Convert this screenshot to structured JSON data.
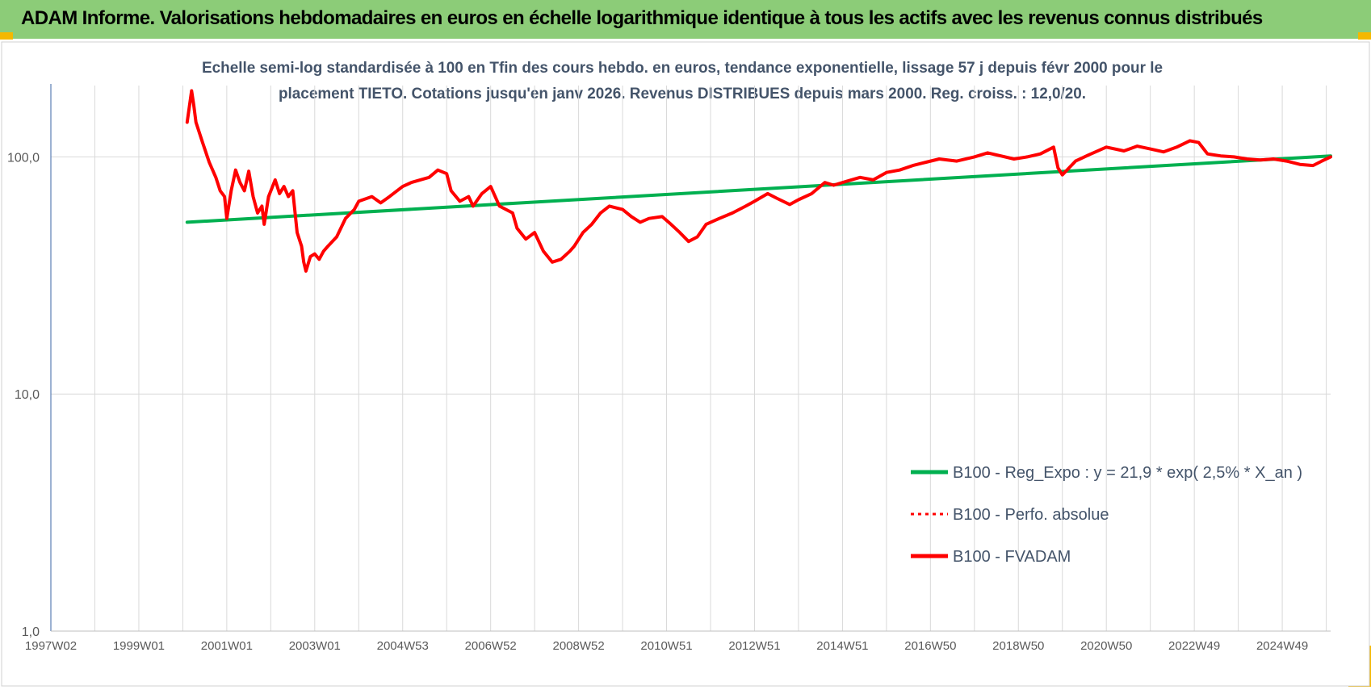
{
  "banner": {
    "title": "ADAM Informe. Valorisations hebdomadaires en euros en échelle logarithmique identique à tous les actifs avec les revenus connus distribués"
  },
  "colors": {
    "banner_bg": "#8ccc78",
    "trend_line": "#00b050",
    "price_line": "#ff0000",
    "grid": "#d9d9d9",
    "axis_text": "#595959",
    "title_text": "#44546a",
    "frame_accent": "#f5b800"
  },
  "chart_data": {
    "type": "line",
    "title_lines": [
      "Echelle semi-log standardisée à 100 en Tfin des cours hebdo. en euros, tendance exponentielle, lissage 57 j depuis févr 2000 pour le",
      "placement TIETO. Cotations jusqu'en janv 2026. Revenus DISTRIBUES depuis mars 2000. Reg. croiss. : 12,0/20."
    ],
    "y_scale": "log",
    "ylim": [
      1,
      200
    ],
    "y_ticks": [
      {
        "value": 1,
        "label": "1,0"
      },
      {
        "value": 10,
        "label": "10,0"
      },
      {
        "value": 100,
        "label": "100,0"
      }
    ],
    "xlim": [
      1997.0,
      2026.1
    ],
    "x_ticks": [
      {
        "value": 1997.0,
        "label": "1997W02"
      },
      {
        "value": 1999.0,
        "label": "1999W01"
      },
      {
        "value": 2001.0,
        "label": "2001W01"
      },
      {
        "value": 2003.0,
        "label": "2003W01"
      },
      {
        "value": 2005.0,
        "label": "2004W53"
      },
      {
        "value": 2007.0,
        "label": "2006W52"
      },
      {
        "value": 2009.0,
        "label": "2008W52"
      },
      {
        "value": 2011.0,
        "label": "2010W51"
      },
      {
        "value": 2013.0,
        "label": "2012W51"
      },
      {
        "value": 2015.0,
        "label": "2014W51"
      },
      {
        "value": 2017.0,
        "label": "2016W50"
      },
      {
        "value": 2019.0,
        "label": "2018W50"
      },
      {
        "value": 2021.0,
        "label": "2020W50"
      },
      {
        "value": 2023.0,
        "label": "2022W49"
      },
      {
        "value": 2025.0,
        "label": "2024W49"
      }
    ],
    "grid": true,
    "legend_position": "bottom-right",
    "series": [
      {
        "name": "B100 - Reg_Expo : y = 21,9 * exp( 2,5% *  X_an )",
        "style": "solid-thick",
        "color": "#00b050",
        "x": [
          2000.1,
          2026.1
        ],
        "y": [
          53,
          101
        ]
      },
      {
        "name": "B100 - Perfo. absolue",
        "style": "dotted",
        "color": "#ff0000",
        "x": [],
        "y": []
      },
      {
        "name": "B100 - FVADAM",
        "style": "solid-thick",
        "color": "#ff0000",
        "x": [
          2000.1,
          2000.2,
          2000.25,
          2000.3,
          2000.45,
          2000.6,
          2000.75,
          2000.85,
          2000.95,
          2001.0,
          2001.1,
          2001.2,
          2001.3,
          2001.4,
          2001.5,
          2001.6,
          2001.7,
          2001.8,
          2001.85,
          2001.95,
          2002.1,
          2002.2,
          2002.3,
          2002.4,
          2002.5,
          2002.6,
          2002.7,
          2002.75,
          2002.8,
          2002.9,
          2003.0,
          2003.1,
          2003.2,
          2003.3,
          2003.5,
          2003.7,
          2003.9,
          2004.0,
          2004.3,
          2004.5,
          2004.7,
          2005.0,
          2005.2,
          2005.4,
          2005.6,
          2005.8,
          2006.0,
          2006.1,
          2006.3,
          2006.5,
          2006.6,
          2006.8,
          2007.0,
          2007.2,
          2007.5,
          2007.6,
          2007.8,
          2008.0,
          2008.2,
          2008.4,
          2008.6,
          2008.8,
          2008.9,
          2009.1,
          2009.3,
          2009.5,
          2009.7,
          2010.0,
          2010.2,
          2010.4,
          2010.6,
          2010.9,
          2011.1,
          2011.3,
          2011.5,
          2011.7,
          2011.9,
          2012.2,
          2012.5,
          2012.8,
          2013.0,
          2013.3,
          2013.5,
          2013.8,
          2014.0,
          2014.3,
          2014.6,
          2014.8,
          2015.1,
          2015.4,
          2015.7,
          2016.0,
          2016.3,
          2016.6,
          2016.9,
          2017.2,
          2017.6,
          2018.0,
          2018.3,
          2018.6,
          2018.9,
          2019.2,
          2019.5,
          2019.8,
          2019.9,
          2020.0,
          2020.3,
          2020.6,
          2021.0,
          2021.4,
          2021.7,
          2022.0,
          2022.3,
          2022.6,
          2022.9,
          2023.1,
          2023.3,
          2023.6,
          2023.9,
          2024.2,
          2024.5,
          2024.8,
          2025.1,
          2025.4,
          2025.7,
          2025.9,
          2026.1
        ],
        "y": [
          140,
          190,
          165,
          140,
          115,
          95,
          82,
          72,
          68,
          55,
          72,
          88,
          78,
          72,
          87,
          68,
          58,
          62,
          52,
          68,
          80,
          70,
          75,
          68,
          72,
          48,
          42,
          36,
          33,
          38,
          39,
          37,
          40,
          42,
          46,
          55,
          60,
          65,
          68,
          64,
          68,
          75,
          78,
          80,
          82,
          88,
          85,
          72,
          65,
          68,
          62,
          70,
          75,
          62,
          58,
          50,
          45,
          48,
          40,
          36,
          37,
          40,
          42,
          48,
          52,
          58,
          62,
          60,
          56,
          53,
          55,
          56,
          52,
          48,
          44,
          46,
          52,
          55,
          58,
          62,
          65,
          70,
          67,
          63,
          66,
          70,
          78,
          76,
          79,
          82,
          80,
          86,
          88,
          92,
          95,
          98,
          96,
          100,
          104,
          101,
          98,
          100,
          103,
          110,
          90,
          84,
          96,
          102,
          110,
          106,
          111,
          108,
          105,
          110,
          117,
          115,
          103,
          101,
          100,
          98,
          97,
          98,
          96,
          93,
          92,
          96,
          100
        ]
      }
    ]
  }
}
